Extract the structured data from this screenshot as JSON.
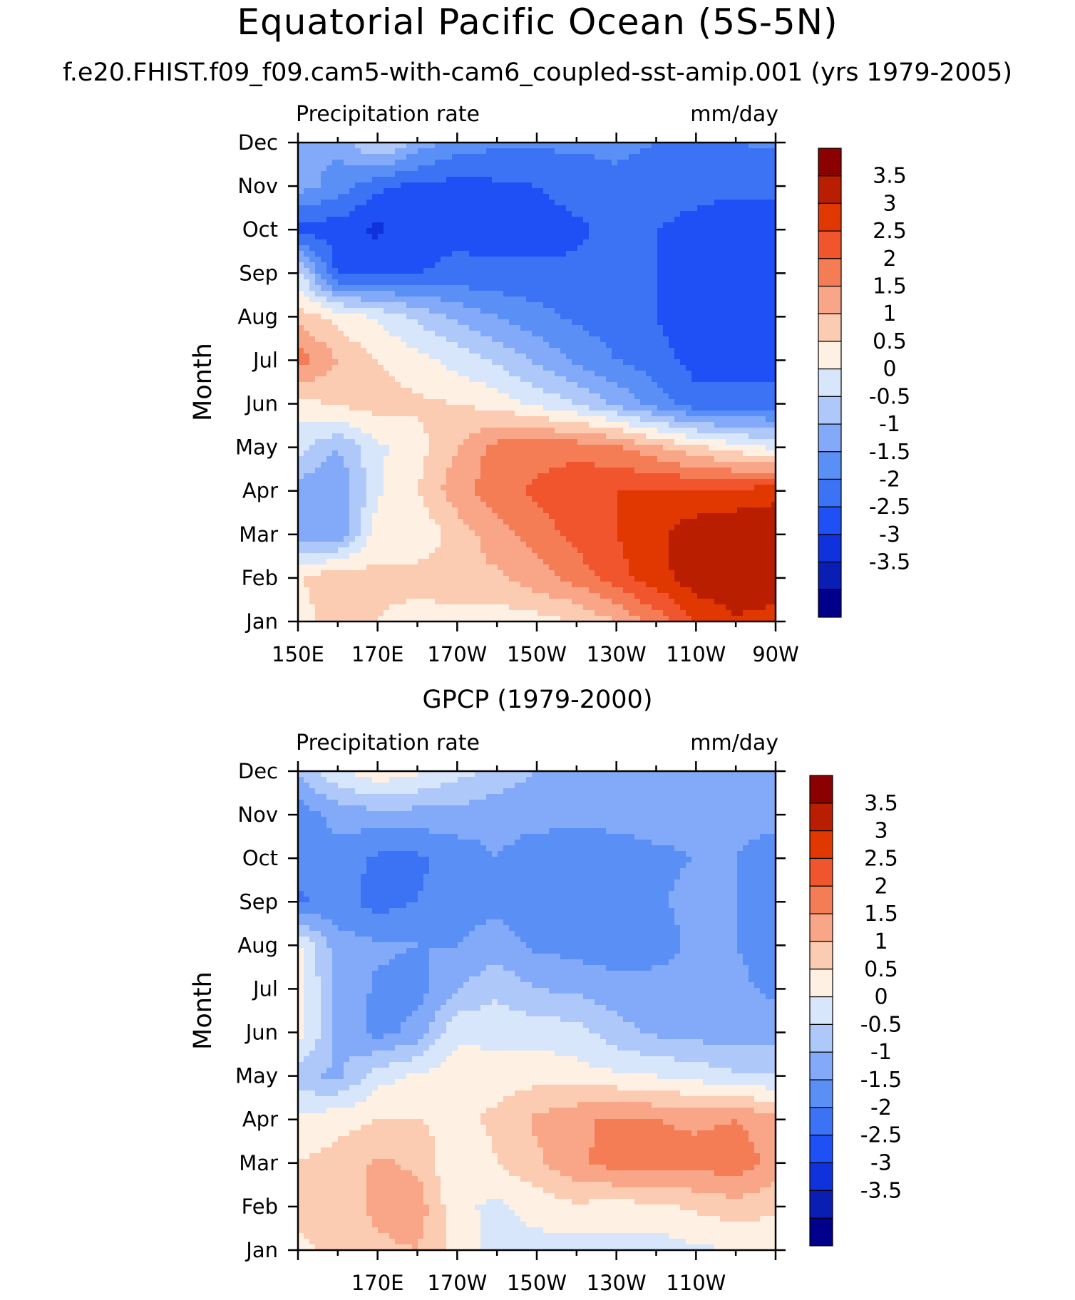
{
  "figure": {
    "title": "Equatorial Pacific Ocean (5S-5N)",
    "subtitle": "f.e20.FHIST.f09_f09.cam5-with-cam6_coupled-sst-amip.001 (yrs 1979-2005)"
  },
  "chart_data": [
    {
      "type": "heatmap",
      "panel_title": "",
      "left_label": "Precipitation rate",
      "right_label": "mm/day",
      "ylabel": "Month",
      "months": [
        "Jan",
        "Feb",
        "Mar",
        "Apr",
        "May",
        "Jun",
        "Jul",
        "Aug",
        "Sep",
        "Oct",
        "Nov",
        "Dec"
      ],
      "x_ticks": [
        "150E",
        "170E",
        "170W",
        "150W",
        "130W",
        "110W",
        "90W"
      ],
      "x_lon": [
        150,
        160,
        170,
        180,
        190,
        200,
        210,
        220,
        230,
        240,
        250,
        260,
        270
      ],
      "colorbar_labels": [
        "3.5",
        "3",
        "2.5",
        "2",
        "1.5",
        "1",
        "0.5",
        "0",
        "-0.5",
        "-1",
        "-1.5",
        "-2",
        "-2.5",
        "-3",
        "-3.5"
      ],
      "z": [
        [
          0.8,
          1.2,
          1.0,
          0.8,
          0.7,
          0.7,
          0.8,
          1.0,
          1.5,
          2.2,
          3.0,
          3.4,
          3.2
        ],
        [
          0.9,
          1.5,
          1.1,
          1.2,
          1.4,
          1.4,
          1.8,
          2.2,
          2.8,
          3.3,
          3.8,
          4.0,
          4.0
        ],
        [
          -0.7,
          -0.9,
          0.8,
          0.6,
          1.2,
          1.8,
          2.2,
          2.7,
          3.0,
          3.4,
          3.8,
          4.0,
          4.0
        ],
        [
          -0.8,
          -1.0,
          0.4,
          1.0,
          1.8,
          2.3,
          2.6,
          2.9,
          3.0,
          3.1,
          3.1,
          3.1,
          3.3
        ],
        [
          0.2,
          -0.5,
          0.4,
          0.8,
          1.5,
          2.2,
          2.3,
          2.3,
          2.1,
          1.6,
          1.1,
          0.7,
          0.4
        ],
        [
          0.8,
          1.1,
          1.2,
          1.1,
          1.0,
          0.8,
          0.4,
          0.0,
          -0.6,
          -1.2,
          -1.8,
          -1.8,
          -1.8
        ],
        [
          2.3,
          1.5,
          1.0,
          0.7,
          0.3,
          -0.1,
          -0.6,
          -1.1,
          -1.5,
          -1.8,
          -2.2,
          -2.2,
          -2.2
        ],
        [
          1.3,
          0.8,
          0.4,
          -0.1,
          -0.6,
          -1.0,
          -1.3,
          -1.6,
          -1.8,
          -2.0,
          -2.3,
          -2.5,
          -2.3
        ],
        [
          0.2,
          -2.1,
          -2.1,
          -2.0,
          -1.9,
          -1.9,
          -1.9,
          -1.9,
          -1.8,
          -2.0,
          -2.3,
          -2.5,
          -2.3
        ],
        [
          -2.2,
          -2.3,
          -2.6,
          -2.2,
          -2.1,
          -2.2,
          -2.2,
          -2.1,
          -1.8,
          -2.0,
          -2.2,
          -2.3,
          -2.2
        ],
        [
          -0.8,
          -1.2,
          -1.9,
          -2.1,
          -2.2,
          -2.1,
          -2.0,
          -1.8,
          -1.6,
          -1.7,
          -1.8,
          -1.9,
          -1.9
        ],
        [
          -0.8,
          -0.9,
          0.2,
          -0.7,
          -1.2,
          -1.4,
          -1.4,
          -1.4,
          -1.4,
          -1.5,
          -1.5,
          -1.5,
          -1.4
        ]
      ]
    },
    {
      "type": "heatmap",
      "panel_title": "GPCP (1979-2000)",
      "left_label": "Precipitation rate",
      "right_label": "mm/day",
      "ylabel": "Month",
      "months": [
        "Jan",
        "Feb",
        "Mar",
        "Apr",
        "May",
        "Jun",
        "Jul",
        "Aug",
        "Sep",
        "Oct",
        "Nov",
        "Dec"
      ],
      "x_ticks": [
        "170E",
        "170W",
        "150W",
        "130W",
        "110W"
      ],
      "x_lon": [
        150,
        160,
        170,
        180,
        190,
        200,
        210,
        220,
        230,
        240,
        250,
        260,
        270
      ],
      "colorbar_labels": [
        "3.5",
        "3",
        "2.5",
        "2",
        "1.5",
        "1",
        "0.5",
        "0",
        "-0.5",
        "-1",
        "-1.5",
        "-2",
        "-2.5",
        "-3",
        "-3.5"
      ],
      "z": [
        [
          0.8,
          1.2,
          1.4,
          1.5,
          0.8,
          0.3,
          0.3,
          0.3,
          0.3,
          0.2,
          0.4,
          0.5,
          0.6
        ],
        [
          1.3,
          1.3,
          1.6,
          1.8,
          0.6,
          0.4,
          0.7,
          0.9,
          0.8,
          0.9,
          1.1,
          1.3,
          1.1
        ],
        [
          1.0,
          1.2,
          1.6,
          1.4,
          0.5,
          1.0,
          1.4,
          1.9,
          2.2,
          2.2,
          2.2,
          2.3,
          1.8
        ],
        [
          0.7,
          0.8,
          1.0,
          1.0,
          0.9,
          1.1,
          1.6,
          1.9,
          2.1,
          2.0,
          1.9,
          2.0,
          1.7
        ],
        [
          -0.4,
          -0.6,
          0.3,
          0.6,
          0.8,
          0.8,
          0.8,
          0.7,
          0.6,
          0.5,
          0.3,
          0.1,
          0.0
        ],
        [
          0.8,
          -0.6,
          -1.2,
          -0.8,
          0.4,
          0.3,
          0.3,
          0.2,
          -0.3,
          -0.6,
          -0.7,
          -0.8,
          -0.7
        ],
        [
          0.7,
          -0.6,
          -1.1,
          -1.2,
          -0.5,
          -0.1,
          -0.5,
          -0.6,
          -0.8,
          -0.8,
          -0.9,
          -0.9,
          -1.1
        ],
        [
          0.6,
          -0.8,
          -0.9,
          -1.0,
          -1.0,
          -0.8,
          -1.1,
          -1.2,
          -1.3,
          -1.2,
          -0.9,
          -1.0,
          -1.2
        ],
        [
          -1.6,
          -1.3,
          -1.7,
          -1.5,
          -1.2,
          -1.1,
          -1.2,
          -1.3,
          -1.3,
          -1.1,
          -0.8,
          -1.0,
          -1.3
        ],
        [
          -1.3,
          -1.2,
          -1.6,
          -1.6,
          -1.3,
          -1.0,
          -1.3,
          -1.4,
          -1.3,
          -1.1,
          -1.0,
          -1.0,
          -1.3
        ],
        [
          -1.3,
          -0.8,
          -0.7,
          -0.7,
          -0.7,
          -0.8,
          -0.8,
          -0.8,
          -0.8,
          -0.8,
          -0.8,
          -0.8,
          -0.8
        ],
        [
          -0.4,
          0.4,
          0.9,
          0.6,
          0.2,
          -0.2,
          -0.5,
          -0.5,
          -0.6,
          -0.7,
          -0.7,
          -0.7,
          -0.7
        ]
      ]
    }
  ],
  "palette": [
    "#00008b",
    "#0a1eb4",
    "#0f32dc",
    "#1e50f5",
    "#3c73f5",
    "#5a8ff5",
    "#82aaf8",
    "#afc8fa",
    "#d7e6fb",
    "#fff0e4",
    "#fcccb2",
    "#f9a587",
    "#f57d55",
    "#f0552d",
    "#e13700",
    "#b91e00",
    "#8b0000"
  ],
  "levels": [
    -3.5,
    -3,
    -2.5,
    -2,
    -1.5,
    -1,
    -0.5,
    0,
    0.5,
    1,
    1.5,
    2,
    2.5,
    3,
    3.5
  ]
}
